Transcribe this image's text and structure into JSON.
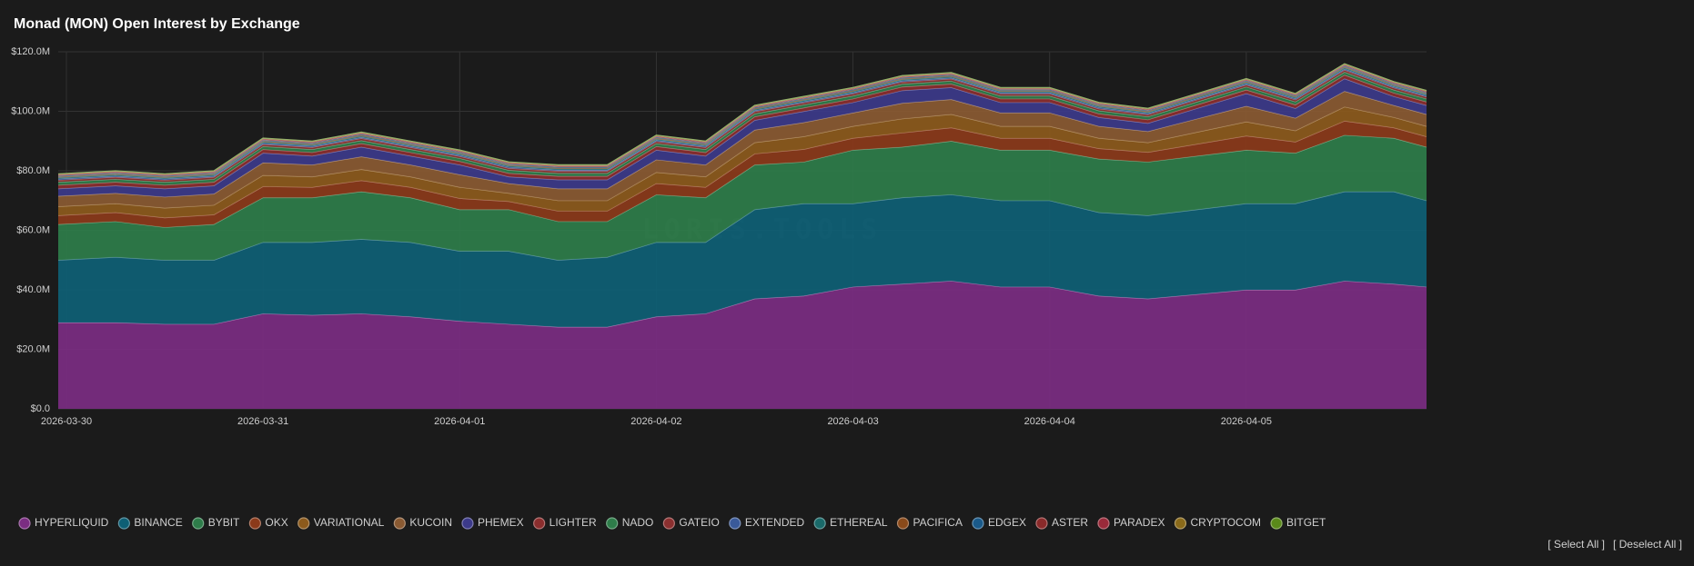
{
  "chart_data": {
    "type": "stacked-area",
    "title": "Monad (MON) Open Interest by Exchange",
    "watermark": "LORIS.TOOLS",
    "buttons": [
      "[ Select All ]",
      "[ Deselect All ]"
    ],
    "grid": true,
    "legend": "bottom",
    "xlim": [
      "2026-03-29T23:00",
      "2026-04-05T22:00"
    ],
    "xticks": [
      "2026-03-30",
      "2026-03-31",
      "2026-04-01",
      "2026-04-02",
      "2026-04-03",
      "2026-04-04",
      "2026-04-05"
    ],
    "ylim": [
      0,
      120000000
    ],
    "yticks": [
      {
        "value": 0,
        "label": "$0.0"
      },
      {
        "value": 20000000,
        "label": "$20.0M"
      },
      {
        "value": 40000000,
        "label": "$40.0M"
      },
      {
        "value": 60000000,
        "label": "$60.0M"
      },
      {
        "value": 80000000,
        "label": "$80.0M"
      },
      {
        "value": 100000000,
        "label": "$100.0M"
      },
      {
        "value": 120000000,
        "label": "$120.0M"
      }
    ],
    "x": [
      "2026-03-29T23:00",
      "2026-03-30T06:00",
      "2026-03-30T12:00",
      "2026-03-30T18:00",
      "2026-03-31T00:00",
      "2026-03-31T06:00",
      "2026-03-31T12:00",
      "2026-03-31T18:00",
      "2026-04-01T00:00",
      "2026-04-01T06:00",
      "2026-04-01T12:00",
      "2026-04-01T18:00",
      "2026-04-02T00:00",
      "2026-04-02T06:00",
      "2026-04-02T12:00",
      "2026-04-02T18:00",
      "2026-04-03T00:00",
      "2026-04-03T06:00",
      "2026-04-03T12:00",
      "2026-04-03T18:00",
      "2026-04-04T00:00",
      "2026-04-04T06:00",
      "2026-04-04T12:00",
      "2026-04-04T18:00",
      "2026-04-05T00:00",
      "2026-04-05T06:00",
      "2026-04-05T12:00",
      "2026-04-05T18:00",
      "2026-04-05T22:00"
    ],
    "series": [
      {
        "name": "HYPERLIQUID",
        "color": "#7b2d82",
        "values": [
          29000000,
          29000000,
          28500000,
          28500000,
          32000000,
          31500000,
          32000000,
          31000000,
          29500000,
          28500000,
          27500000,
          27500000,
          31000000,
          32000000,
          37000000,
          38000000,
          41000000,
          42000000,
          43000000,
          41000000,
          41000000,
          38000000,
          37000000,
          38500000,
          40000000,
          40000000,
          43000000,
          42000000,
          41000000
        ]
      },
      {
        "name": "BINANCE",
        "color": "#0e5f75",
        "values": [
          21000000,
          22000000,
          21500000,
          21500000,
          24000000,
          24500000,
          25000000,
          25000000,
          23500000,
          24500000,
          22500000,
          23500000,
          25000000,
          24000000,
          30000000,
          31000000,
          28000000,
          29000000,
          29000000,
          29000000,
          29000000,
          28000000,
          28000000,
          28500000,
          29000000,
          29000000,
          30000000,
          31000000,
          29000000
        ]
      },
      {
        "name": "BYBIT",
        "color": "#2e7d4a",
        "values": [
          12000000,
          12000000,
          11000000,
          12000000,
          15000000,
          15000000,
          16000000,
          15000000,
          14000000,
          14000000,
          13000000,
          12000000,
          16000000,
          15000000,
          15000000,
          14000000,
          18000000,
          17000000,
          18000000,
          17000000,
          17000000,
          18000000,
          18000000,
          18000000,
          18000000,
          17000000,
          19000000,
          18000000,
          18000000
        ]
      },
      {
        "name": "OKX",
        "color": "#8b3a1a",
        "values": [
          3000000,
          3000000,
          3250000,
          3250000,
          3750000,
          3500000,
          3750000,
          3500000,
          3750000,
          2750000,
          3500000,
          3500000,
          3750000,
          3500000,
          3750000,
          4250000,
          4000000,
          4750000,
          4500000,
          4000000,
          4000000,
          3500000,
          3250000,
          4000000,
          4750000,
          3750000,
          4750000,
          3500000,
          3500000
        ]
      },
      {
        "name": "VARIATIONAL",
        "color": "#8c5a1c",
        "values": [
          3000000,
          3000000,
          3250000,
          3250000,
          3750000,
          3500000,
          3750000,
          3500000,
          3750000,
          2750000,
          3500000,
          3500000,
          3750000,
          3500000,
          3750000,
          4250000,
          4000000,
          4750000,
          4500000,
          4000000,
          4000000,
          3500000,
          3250000,
          4000000,
          4750000,
          3750000,
          4750000,
          3500000,
          3500000
        ]
      },
      {
        "name": "KUCOIN",
        "color": "#8a5a32",
        "values": [
          3500000,
          3500000,
          3750000,
          3750000,
          4250000,
          4000000,
          4250000,
          4000000,
          4250000,
          3250000,
          4000000,
          4000000,
          4250000,
          4000000,
          4250000,
          4750000,
          4500000,
          5250000,
          5000000,
          4500000,
          4500000,
          4000000,
          3750000,
          4500000,
          5250000,
          4250000,
          5250000,
          4000000,
          4000000
        ]
      },
      {
        "name": "PHEMEX",
        "color": "#3c3a8a",
        "values": [
          2500000,
          2500000,
          2750000,
          2750000,
          3250000,
          3000000,
          3250000,
          3000000,
          3250000,
          2250000,
          3000000,
          3000000,
          3250000,
          3000000,
          3250000,
          3750000,
          3500000,
          4250000,
          4000000,
          3500000,
          3500000,
          3000000,
          2750000,
          3500000,
          4250000,
          3250000,
          4250000,
          3000000,
          3000000
        ]
      },
      {
        "name": "LIGHTER",
        "color": "#8b2e2e",
        "values": [
          1200000,
          1200000,
          1200000,
          1200000,
          1200000,
          1200000,
          1200000,
          1200000,
          1200000,
          1200000,
          1200000,
          1200000,
          1200000,
          1200000,
          1200000,
          1200000,
          1200000,
          1200000,
          1200000,
          1200000,
          1200000,
          1200000,
          1200000,
          1200000,
          1200000,
          1200000,
          1200000,
          1200000,
          1200000
        ]
      },
      {
        "name": "NADO",
        "color": "#2e7d4a",
        "values": [
          1000000,
          1000000,
          1000000,
          1000000,
          1000000,
          1000000,
          1000000,
          1000000,
          1000000,
          1000000,
          1000000,
          1000000,
          1000000,
          1000000,
          1000000,
          1000000,
          1000000,
          1000000,
          1000000,
          1000000,
          1000000,
          1000000,
          1000000,
          1000000,
          1000000,
          1000000,
          1000000,
          1000000,
          1000000
        ]
      },
      {
        "name": "GATEIO",
        "color": "#8b3030",
        "values": [
          700000,
          700000,
          700000,
          700000,
          700000,
          700000,
          700000,
          700000,
          700000,
          700000,
          700000,
          700000,
          700000,
          700000,
          700000,
          700000,
          700000,
          700000,
          700000,
          700000,
          700000,
          700000,
          700000,
          700000,
          700000,
          700000,
          700000,
          700000,
          700000
        ]
      },
      {
        "name": "EXTENDED",
        "color": "#3a5a9a",
        "values": [
          400000,
          400000,
          400000,
          400000,
          400000,
          400000,
          400000,
          400000,
          400000,
          400000,
          400000,
          400000,
          400000,
          400000,
          400000,
          400000,
          400000,
          400000,
          400000,
          400000,
          400000,
          400000,
          400000,
          400000,
          400000,
          400000,
          400000,
          400000,
          400000
        ]
      },
      {
        "name": "ETHEREAL",
        "color": "#1a6a6a",
        "values": [
          400000,
          400000,
          400000,
          400000,
          400000,
          400000,
          400000,
          400000,
          400000,
          400000,
          400000,
          400000,
          400000,
          400000,
          400000,
          400000,
          400000,
          400000,
          400000,
          400000,
          400000,
          400000,
          400000,
          400000,
          400000,
          400000,
          400000,
          400000,
          400000
        ]
      },
      {
        "name": "PACIFICA",
        "color": "#8a4a1a",
        "values": [
          300000,
          300000,
          300000,
          300000,
          300000,
          300000,
          300000,
          300000,
          300000,
          300000,
          300000,
          300000,
          300000,
          300000,
          300000,
          300000,
          300000,
          300000,
          300000,
          300000,
          300000,
          300000,
          300000,
          300000,
          300000,
          300000,
          300000,
          300000,
          300000
        ]
      },
      {
        "name": "EDGEX",
        "color": "#1a5a8a",
        "values": [
          300000,
          300000,
          300000,
          300000,
          300000,
          300000,
          300000,
          300000,
          300000,
          300000,
          300000,
          300000,
          300000,
          300000,
          300000,
          300000,
          300000,
          300000,
          300000,
          300000,
          300000,
          300000,
          300000,
          300000,
          300000,
          300000,
          300000,
          300000,
          300000
        ]
      },
      {
        "name": "ASTER",
        "color": "#8a2a2a",
        "values": [
          200000,
          200000,
          200000,
          200000,
          200000,
          200000,
          200000,
          200000,
          200000,
          200000,
          200000,
          200000,
          200000,
          200000,
          200000,
          200000,
          200000,
          200000,
          200000,
          200000,
          200000,
          200000,
          200000,
          200000,
          200000,
          200000,
          200000,
          200000,
          200000
        ]
      },
      {
        "name": "PARADEX",
        "color": "#9a2a3a",
        "values": [
          200000,
          200000,
          200000,
          200000,
          200000,
          200000,
          200000,
          200000,
          200000,
          200000,
          200000,
          200000,
          200000,
          200000,
          200000,
          200000,
          200000,
          200000,
          200000,
          200000,
          200000,
          200000,
          200000,
          200000,
          200000,
          200000,
          200000,
          200000,
          200000
        ]
      },
      {
        "name": "CRYPTOCOM",
        "color": "#8a6a1a",
        "values": [
          200000,
          200000,
          200000,
          200000,
          200000,
          200000,
          200000,
          200000,
          200000,
          200000,
          200000,
          200000,
          200000,
          200000,
          200000,
          200000,
          200000,
          200000,
          200000,
          200000,
          200000,
          200000,
          200000,
          200000,
          200000,
          200000,
          200000,
          200000,
          200000
        ]
      },
      {
        "name": "BITGET",
        "color": "#5a8a1a",
        "values": [
          100000,
          100000,
          100000,
          100000,
          100000,
          100000,
          100000,
          100000,
          100000,
          100000,
          100000,
          100000,
          100000,
          100000,
          100000,
          100000,
          100000,
          100000,
          100000,
          100000,
          100000,
          100000,
          100000,
          100000,
          100000,
          100000,
          100000,
          100000,
          100000
        ]
      }
    ]
  }
}
